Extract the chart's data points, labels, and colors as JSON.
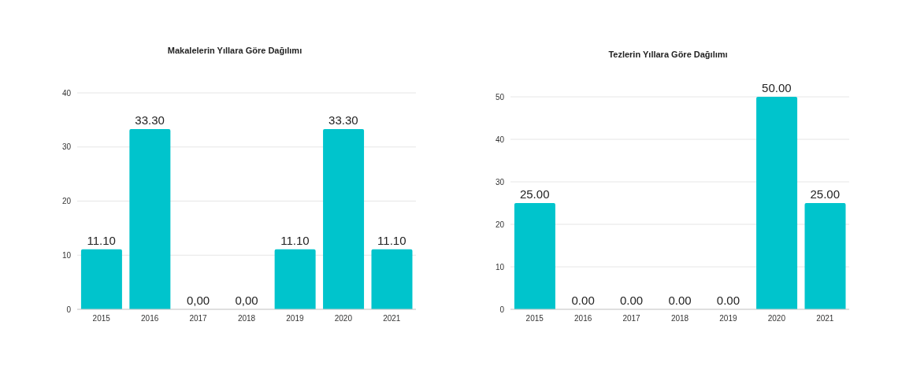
{
  "chart_data": [
    {
      "type": "bar",
      "title": "Makalelerin Yıllara Göre Dağılımı",
      "categories": [
        "2015",
        "2016",
        "2017",
        "2018",
        "2019",
        "2020",
        "2021"
      ],
      "values": [
        11.1,
        33.3,
        0,
        0,
        11.1,
        33.3,
        11.1
      ],
      "value_labels": [
        "11.10",
        "33.30",
        "0,00",
        "0,00",
        "11.10",
        "33.30",
        "11.10"
      ],
      "color": "#00c4cc",
      "ylim": [
        0,
        40
      ],
      "yticks": [
        0,
        10,
        20,
        30,
        40
      ],
      "grid": "y"
    },
    {
      "type": "bar",
      "title": "Tezlerin Yıllara Göre Dağılımı",
      "categories": [
        "2015",
        "2016",
        "2017",
        "2018",
        "2019",
        "2020",
        "2021"
      ],
      "values": [
        25,
        0,
        0,
        0,
        0,
        50,
        25
      ],
      "value_labels": [
        "25.00",
        "0.00",
        "0.00",
        "0.00",
        "0.00",
        "50.00",
        "25.00"
      ],
      "color": "#00c4cc",
      "ylim": [
        0,
        50
      ],
      "yticks": [
        0,
        10,
        20,
        30,
        40,
        50
      ],
      "grid": "y"
    }
  ]
}
